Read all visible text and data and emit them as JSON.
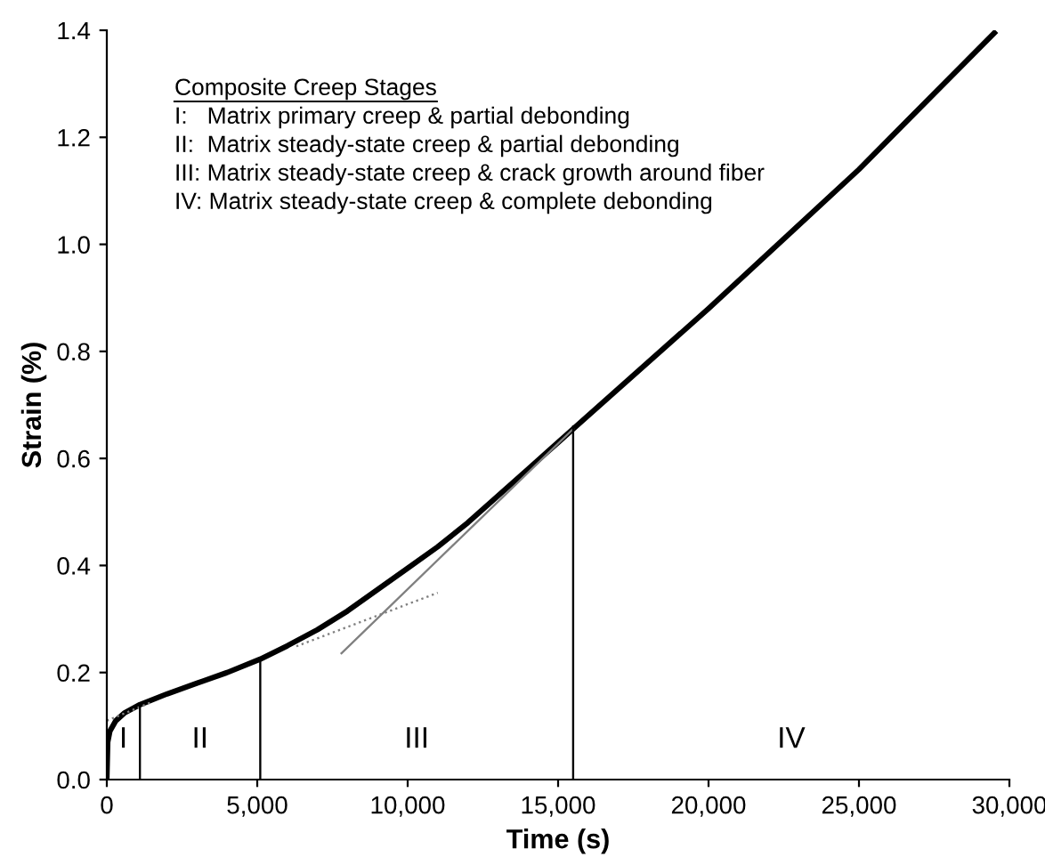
{
  "chart_data": {
    "type": "line",
    "xlabel": "Time (s)",
    "ylabel": "Strain (%)",
    "xlim": [
      0,
      30000
    ],
    "ylim": [
      0,
      1.4
    ],
    "xticks": [
      0,
      {
        "value": 5000,
        "label": "5,000"
      },
      {
        "value": 10000,
        "label": "10,000"
      },
      {
        "value": 15000,
        "label": "15,000"
      },
      {
        "value": 20000,
        "label": "20,000"
      },
      {
        "value": 25000,
        "label": "25,000"
      },
      {
        "value": 30000,
        "label": "30,000"
      }
    ],
    "yticks": [
      {
        "value": 0,
        "label": "0.0"
      },
      {
        "value": 0.2,
        "label": "0.2"
      },
      {
        "value": 0.4,
        "label": "0.4"
      },
      {
        "value": 0.6,
        "label": "0.6"
      },
      {
        "value": 0.8,
        "label": "0.8"
      },
      {
        "value": 1.0,
        "label": "1.0"
      },
      {
        "value": 1.2,
        "label": "1.2"
      },
      {
        "value": 1.4,
        "label": "1.4"
      }
    ],
    "grid": false,
    "legend": false,
    "marker": "none",
    "series": [
      {
        "color": "#000000",
        "line_style": "solid",
        "x": [
          0,
          30,
          100,
          300,
          600,
          1100,
          2000,
          3000,
          4000,
          5100,
          6000,
          7000,
          8000,
          9000,
          10000,
          11000,
          12000,
          13000,
          14000,
          15000,
          15500,
          20000,
          25000,
          29500
        ],
        "values": [
          0,
          0.07,
          0.09,
          0.11,
          0.125,
          0.14,
          0.16,
          0.18,
          0.2,
          0.225,
          0.25,
          0.28,
          0.315,
          0.355,
          0.395,
          0.435,
          0.48,
          0.53,
          0.58,
          0.63,
          0.655,
          0.88,
          1.14,
          1.395
        ]
      },
      {
        "color": "#808080",
        "line_style": "dotted",
        "x": [
          0,
          1500
        ],
        "values": [
          0.11,
          0.145
        ]
      },
      {
        "color": "#808080",
        "line_style": "dotted",
        "x": [
          6300,
          11000
        ],
        "values": [
          0.249,
          0.349
        ]
      },
      {
        "color": "#808080",
        "line_style": "solid",
        "x": [
          7800,
          15500
        ],
        "values": [
          0.236,
          0.655
        ]
      },
      {
        "color": "#000000",
        "line_style": "solid",
        "x": [
          1100,
          1100
        ],
        "values": [
          0,
          0.14
        ]
      },
      {
        "color": "#000000",
        "line_style": "solid",
        "x": [
          5100,
          5100
        ],
        "values": [
          0,
          0.225
        ]
      },
      {
        "color": "#000000",
        "line_style": "solid",
        "x": [
          15500,
          15500
        ],
        "values": [
          0,
          0.66
        ]
      }
    ],
    "annotations": [
      "Composite Creep Stages",
      "I:   Matrix primary creep & partial debonding",
      "II:  Matrix steady-state creep & partial debonding",
      "III: Matrix steady-state creep & crack growth around fiber",
      "IV: Matrix steady-state creep & complete debonding",
      "I",
      "II",
      "III",
      "IV"
    ]
  }
}
